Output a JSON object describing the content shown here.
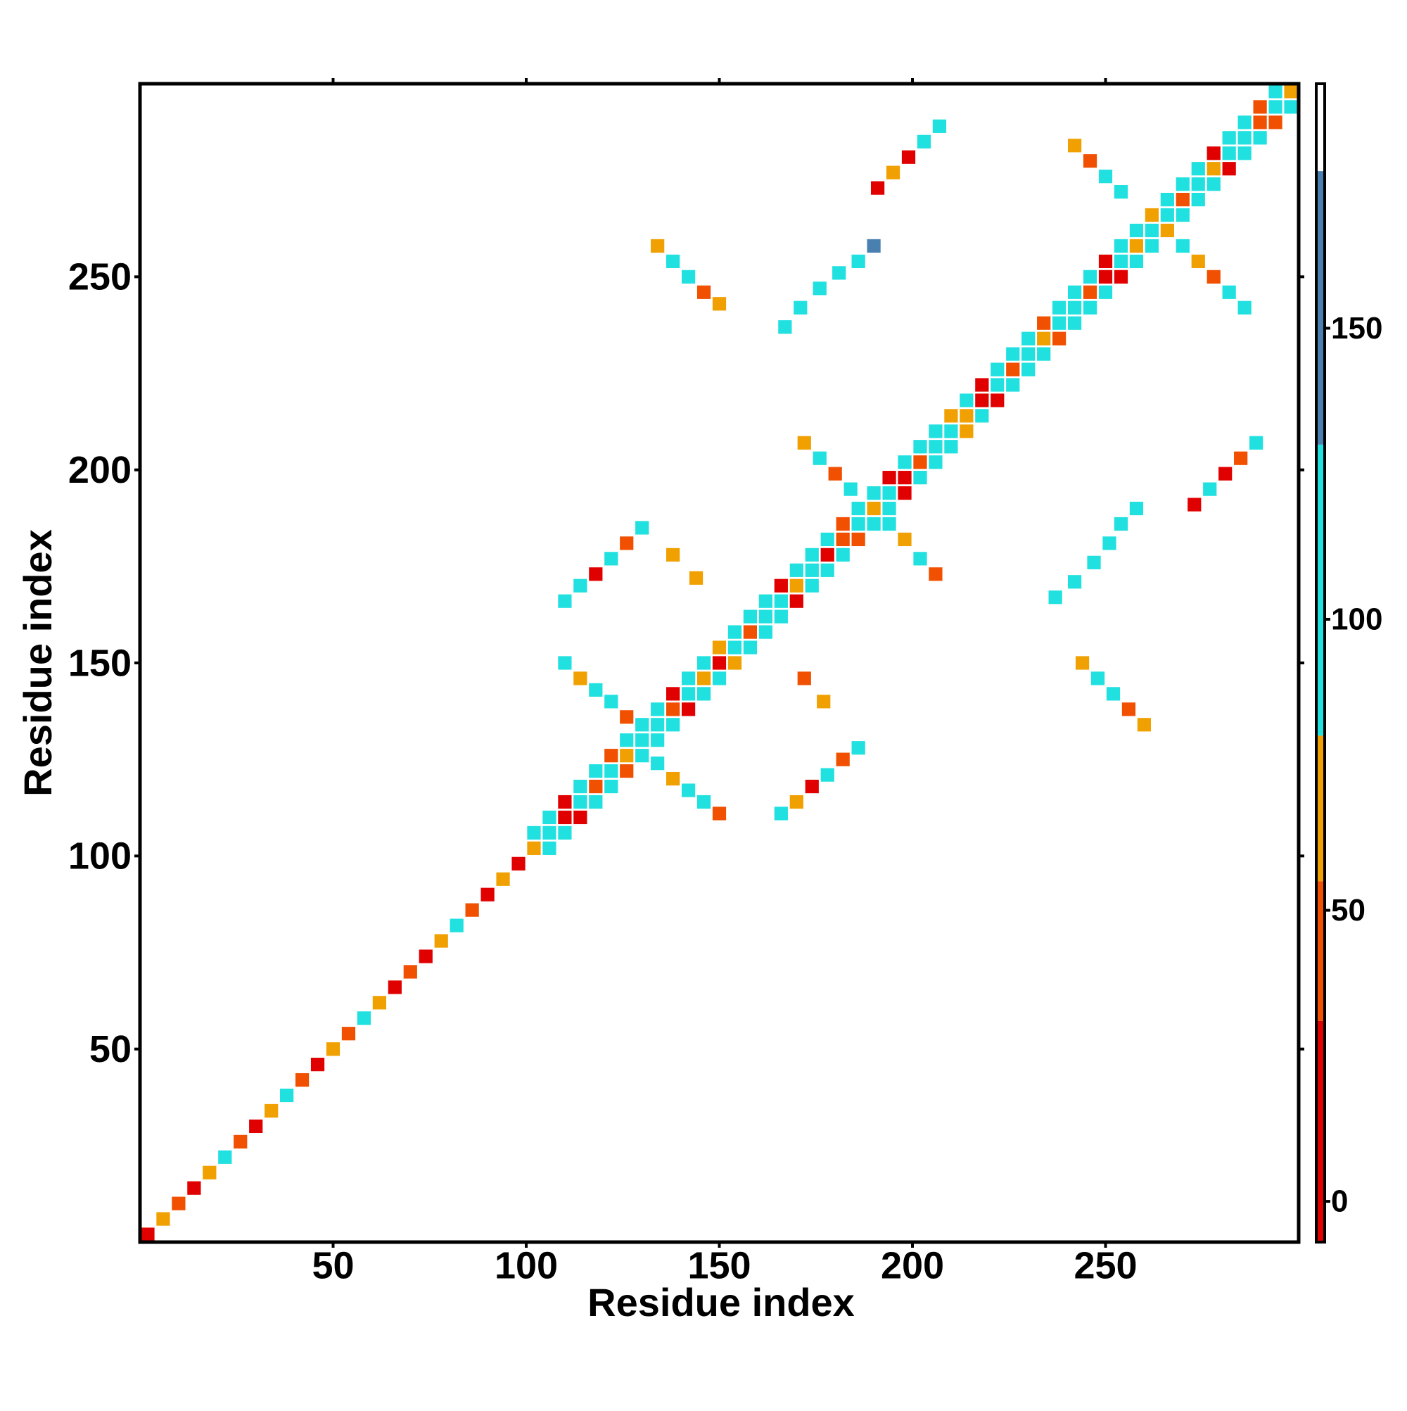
{
  "chart_data": {
    "type": "heatmap",
    "x_label": "Residue index",
    "y_label": "Residue index",
    "xlim": [
      0,
      300
    ],
    "ylim": [
      0,
      300
    ],
    "xticks": [
      50,
      100,
      150,
      200,
      250
    ],
    "yticks": [
      50,
      100,
      150,
      200,
      250
    ],
    "zlim": [
      -7,
      192
    ],
    "zticks": [
      0,
      50,
      100,
      150
    ],
    "color_bounds": [
      31,
      55,
      80,
      130,
      177
    ],
    "colors": [
      "#e00000",
      "#f05000",
      "#f0a000",
      "#20e0e0",
      "#4a80b0",
      "#ffffff"
    ],
    "x": [
      2,
      6,
      10,
      14,
      18,
      22,
      26,
      30,
      34,
      38,
      42,
      46,
      50,
      54,
      58,
      62,
      66,
      70,
      74,
      78,
      82,
      86,
      90,
      94,
      98,
      102,
      106,
      110,
      114,
      118,
      122,
      126,
      130,
      134,
      138,
      142,
      146,
      150,
      154,
      158,
      162,
      166,
      170,
      174,
      178,
      182,
      186,
      190,
      194,
      198,
      202,
      206,
      210,
      214,
      218,
      222,
      226,
      230,
      234,
      238,
      242,
      246,
      250,
      254,
      258,
      262,
      266,
      270,
      274,
      278,
      282,
      286,
      290,
      294,
      298,
      102,
      106,
      110,
      114,
      118,
      122,
      126,
      130,
      134,
      138,
      142,
      146,
      150,
      154,
      158,
      162,
      166,
      170,
      174,
      178,
      182,
      186,
      190,
      194,
      198,
      202,
      206,
      210,
      214,
      218,
      222,
      226,
      230,
      234,
      238,
      242,
      246,
      250,
      254,
      258,
      262,
      266,
      270,
      274,
      278,
      282,
      286,
      290,
      294,
      106,
      110,
      114,
      118,
      122,
      126,
      130,
      134,
      138,
      142,
      146,
      150,
      154,
      158,
      162,
      166,
      170,
      174,
      178,
      182,
      186,
      190,
      194,
      198,
      202,
      206,
      210,
      214,
      218,
      222,
      226,
      230,
      234,
      238,
      242,
      246,
      250,
      254,
      258,
      262,
      266,
      270,
      274,
      278,
      282,
      286,
      290,
      294,
      298,
      134,
      138,
      142,
      146,
      150,
      110,
      114,
      118,
      122,
      126,
      110,
      114,
      118,
      122,
      126,
      130,
      166,
      170,
      174,
      178,
      182,
      186,
      138,
      144,
      172,
      177,
      172,
      176,
      180,
      184,
      194,
      198,
      202,
      206,
      134,
      138,
      142,
      146,
      150,
      244,
      248,
      252,
      256,
      260,
      167,
      171,
      176,
      181,
      186,
      190,
      237,
      242,
      247,
      251,
      254,
      258,
      191,
      195,
      199,
      203,
      207,
      273,
      277,
      281,
      285,
      289,
      242,
      246,
      250,
      254,
      270,
      274,
      278,
      282,
      286
    ],
    "y": [
      2,
      6,
      10,
      14,
      18,
      22,
      26,
      30,
      34,
      38,
      42,
      46,
      50,
      54,
      58,
      62,
      66,
      70,
      74,
      78,
      82,
      86,
      90,
      94,
      98,
      102,
      106,
      110,
      114,
      118,
      122,
      126,
      130,
      134,
      138,
      142,
      146,
      150,
      154,
      158,
      162,
      166,
      170,
      174,
      178,
      182,
      186,
      190,
      194,
      198,
      202,
      206,
      210,
      214,
      218,
      222,
      226,
      230,
      234,
      238,
      242,
      246,
      250,
      254,
      258,
      262,
      266,
      270,
      274,
      278,
      282,
      286,
      290,
      294,
      298,
      106,
      110,
      114,
      118,
      122,
      126,
      130,
      134,
      138,
      142,
      146,
      150,
      154,
      158,
      162,
      166,
      170,
      174,
      178,
      182,
      186,
      190,
      194,
      198,
      202,
      206,
      210,
      214,
      218,
      222,
      226,
      230,
      234,
      238,
      242,
      246,
      250,
      254,
      258,
      262,
      266,
      270,
      274,
      278,
      282,
      286,
      290,
      294,
      298,
      102,
      106,
      110,
      114,
      118,
      122,
      126,
      130,
      134,
      138,
      142,
      146,
      150,
      154,
      158,
      162,
      166,
      170,
      174,
      178,
      182,
      186,
      190,
      194,
      198,
      202,
      206,
      210,
      214,
      218,
      222,
      226,
      230,
      234,
      238,
      242,
      246,
      250,
      254,
      258,
      262,
      266,
      270,
      274,
      278,
      282,
      286,
      290,
      294,
      124,
      120,
      117,
      114,
      111,
      150,
      146,
      143,
      140,
      136,
      166,
      170,
      173,
      177,
      181,
      185,
      111,
      114,
      118,
      121,
      125,
      128,
      178,
      172,
      146,
      140,
      207,
      203,
      199,
      195,
      186,
      182,
      177,
      173,
      258,
      254,
      250,
      246,
      243,
      150,
      146,
      142,
      138,
      134,
      237,
      242,
      247,
      251,
      254,
      258,
      167,
      171,
      176,
      181,
      186,
      190,
      273,
      277,
      281,
      285,
      289,
      191,
      195,
      199,
      203,
      207,
      284,
      280,
      276,
      272,
      258,
      254,
      250,
      246,
      242
    ],
    "values": [
      10,
      60,
      45,
      20,
      60,
      95,
      45,
      15,
      60,
      95,
      45,
      10,
      60,
      45,
      95,
      60,
      10,
      45,
      20,
      60,
      95,
      45,
      10,
      60,
      15,
      60,
      95,
      10,
      95,
      45,
      95,
      60,
      95,
      95,
      45,
      95,
      60,
      10,
      95,
      45,
      95,
      95,
      60,
      95,
      10,
      45,
      95,
      60,
      95,
      10,
      45,
      95,
      95,
      60,
      10,
      95,
      45,
      95,
      60,
      95,
      95,
      45,
      10,
      95,
      60,
      95,
      95,
      45,
      95,
      60,
      95,
      95,
      45,
      95,
      60,
      95,
      95,
      10,
      95,
      95,
      45,
      95,
      95,
      95,
      10,
      95,
      95,
      60,
      95,
      95,
      95,
      10,
      95,
      95,
      95,
      45,
      95,
      95,
      10,
      95,
      95,
      95,
      60,
      95,
      10,
      95,
      95,
      95,
      45,
      95,
      95,
      95,
      10,
      95,
      95,
      60,
      95,
      95,
      95,
      10,
      95,
      95,
      45,
      95,
      95,
      95,
      10,
      95,
      95,
      45,
      95,
      95,
      95,
      10,
      95,
      95,
      60,
      95,
      95,
      95,
      10,
      95,
      95,
      95,
      45,
      95,
      95,
      10,
      95,
      95,
      95,
      60,
      95,
      10,
      95,
      95,
      95,
      45,
      95,
      95,
      95,
      10,
      95,
      95,
      60,
      95,
      95,
      95,
      10,
      95,
      95,
      45,
      95,
      95,
      60,
      95,
      95,
      45,
      95,
      60,
      95,
      95,
      45,
      95,
      95,
      10,
      95,
      45,
      95,
      95,
      60,
      10,
      95,
      45,
      95,
      60,
      60,
      45,
      60,
      60,
      95,
      45,
      95,
      95,
      60,
      95,
      45,
      60,
      95,
      95,
      45,
      60,
      60,
      95,
      95,
      45,
      60,
      95,
      95,
      95,
      95,
      95,
      130,
      95,
      95,
      95,
      95,
      95,
      95,
      10,
      60,
      10,
      95,
      95,
      10,
      95,
      10,
      45,
      95,
      60,
      45,
      95,
      95,
      95,
      60,
      45,
      95,
      95
    ]
  }
}
